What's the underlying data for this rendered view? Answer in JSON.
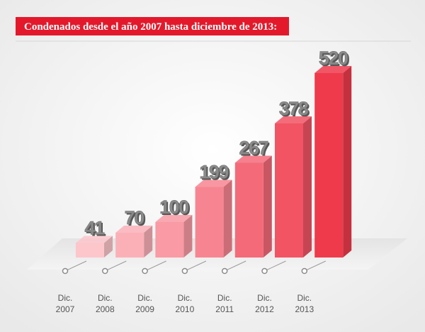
{
  "chart_data": {
    "type": "bar3d",
    "title": "Condenados desde el año 2007 hasta diciembre de 2013:",
    "categories": [
      "Dic. 2007",
      "Dic. 2008",
      "Dic. 2009",
      "Dic. 2010",
      "Dic. 2011",
      "Dic. 2012",
      "Dic. 2013"
    ],
    "values": [
      41,
      70,
      100,
      199,
      267,
      378,
      520
    ],
    "colors": [
      "#fcc6cb",
      "#fbb0b8",
      "#f99aa4",
      "#f78591",
      "#f46a79",
      "#f25464",
      "#ef3a4c"
    ]
  }
}
